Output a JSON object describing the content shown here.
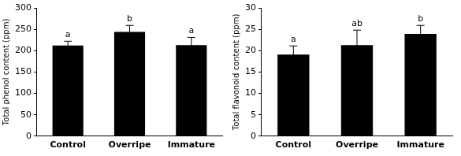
{
  "chart_data": [
    {
      "type": "bar",
      "ylabel": "Total phenol content (ppm)",
      "categories": [
        "Control",
        "Overripe",
        "Immature"
      ],
      "values": [
        212,
        244,
        213
      ],
      "errors": [
        10,
        15,
        18
      ],
      "annotations": [
        "a",
        "b",
        "a"
      ],
      "color": "#000000",
      "ylim": [
        0,
        300
      ],
      "yticks": [
        0,
        50,
        100,
        150,
        200,
        250,
        300
      ],
      "grid": false
    },
    {
      "type": "bar",
      "ylabel": "Total flavonoid content (ppm)",
      "categories": [
        "Control",
        "Overripe",
        "Immature"
      ],
      "values": [
        19.1,
        21.3,
        23.9
      ],
      "errors": [
        2.0,
        3.5,
        2.0
      ],
      "annotations": [
        "a",
        "ab",
        "b"
      ],
      "color": "#000000",
      "ylim": [
        0,
        30
      ],
      "yticks": [
        0,
        5,
        10,
        15,
        20,
        25,
        30
      ],
      "grid": false
    }
  ]
}
